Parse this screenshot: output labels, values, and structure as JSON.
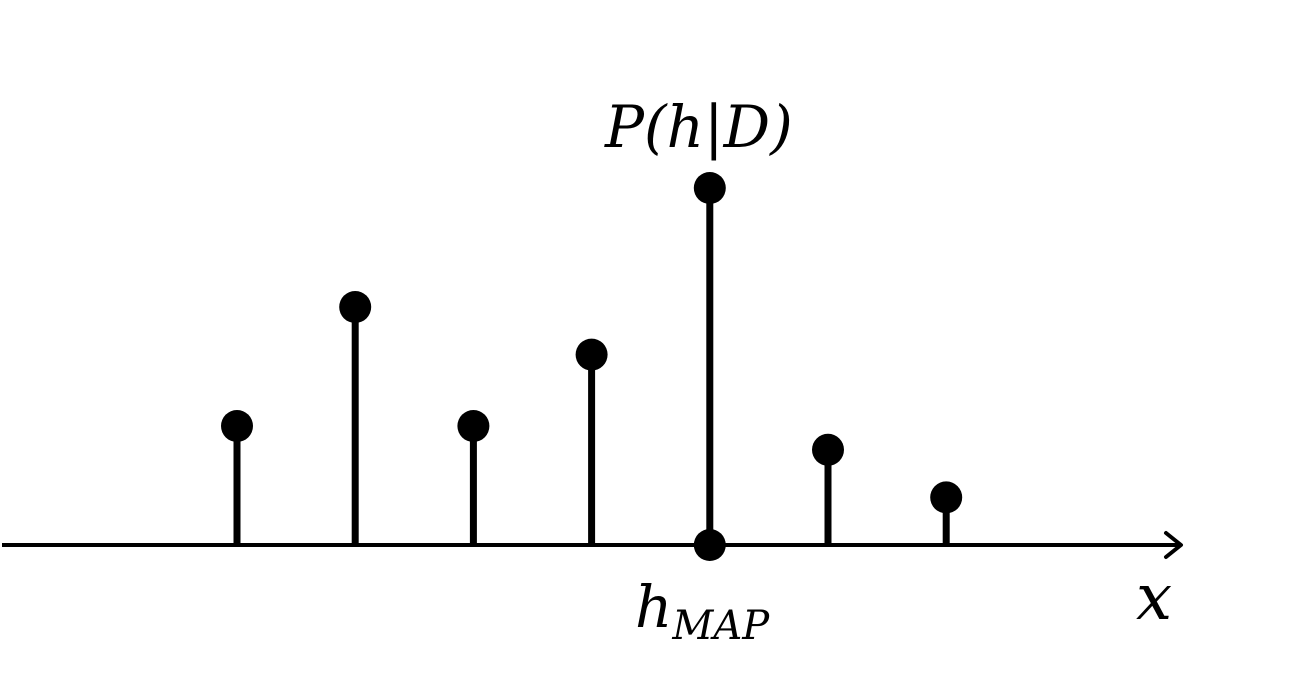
{
  "chart_data": {
    "type": "stem",
    "x": [
      1,
      2,
      3,
      4,
      5,
      6,
      7
    ],
    "values": [
      0.5,
      1.0,
      0.5,
      0.8,
      1.5,
      0.4,
      0.2
    ],
    "highlight_index": 4,
    "peak_label_pre": "P(h",
    "peak_label_bar": "|",
    "peak_label_post": "D)",
    "map_label_base": "h",
    "map_label_sub": "MAP",
    "xlabel": "x",
    "ylim": [
      0,
      1.5
    ],
    "grid": false,
    "colors": {
      "stem": "#000000",
      "marker": "#000000",
      "axis": "#000000"
    }
  }
}
